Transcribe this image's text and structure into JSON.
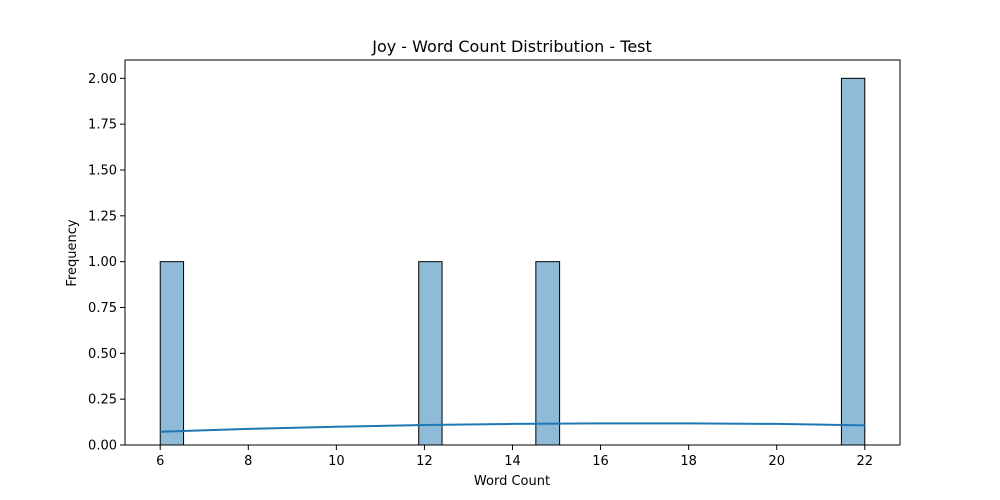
{
  "chart_data": {
    "type": "bar",
    "title": "Joy - Word Count Distribution - Test",
    "xlabel": "Word Count",
    "ylabel": "Frequency",
    "xlim": [
      5.2,
      22.8
    ],
    "ylim": [
      0,
      2.1
    ],
    "xticks": [
      6,
      8,
      10,
      12,
      14,
      16,
      18,
      20,
      22
    ],
    "yticks": [
      "0.00",
      "0.25",
      "0.50",
      "0.75",
      "1.00",
      "1.25",
      "1.50",
      "1.75",
      "2.00"
    ],
    "grid": false,
    "bins": [
      {
        "x0": 6.0,
        "x1": 6.53,
        "count": 1
      },
      {
        "x0": 11.87,
        "x1": 12.4,
        "count": 1
      },
      {
        "x0": 14.53,
        "x1": 15.07,
        "count": 1
      },
      {
        "x0": 21.47,
        "x1": 22.0,
        "count": 2
      }
    ],
    "kde": {
      "x": [
        6,
        8,
        10,
        12,
        14,
        16,
        18,
        20,
        22
      ],
      "y": [
        0.072,
        0.088,
        0.1,
        0.109,
        0.115,
        0.118,
        0.118,
        0.115,
        0.107
      ]
    },
    "colors": {
      "bar_fill": "#8fbbd9",
      "bar_edge": "#000000",
      "kde_line": "#1f77b4"
    }
  }
}
